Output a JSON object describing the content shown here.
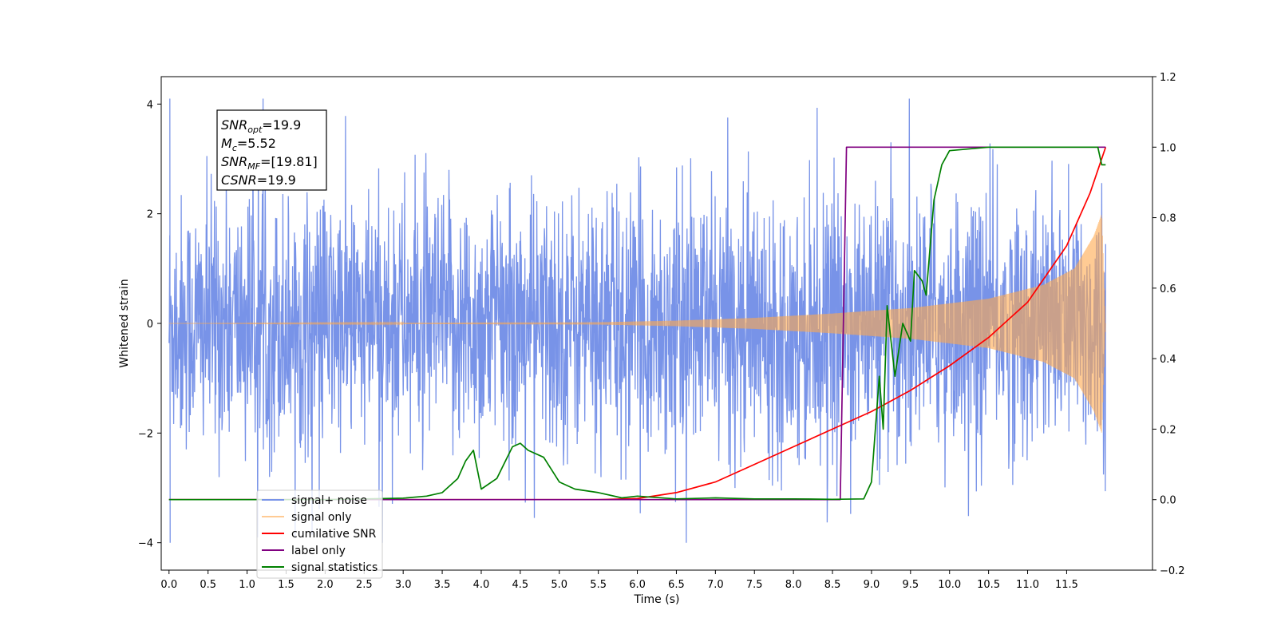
{
  "chart_data": {
    "type": "line",
    "xlabel": "Time (s)",
    "ylabel_left": "Whitened strain",
    "ylabel_right": "",
    "xlim": [
      -0.1,
      12.6
    ],
    "ylim_left": [
      -4.5,
      4.5
    ],
    "ylim_right": [
      -0.2,
      1.2
    ],
    "x_ticks": [
      0.0,
      0.5,
      1.0,
      1.5,
      2.0,
      2.5,
      3.0,
      3.5,
      4.0,
      4.5,
      5.0,
      5.5,
      6.0,
      6.5,
      7.0,
      7.5,
      8.0,
      8.5,
      9.0,
      9.5,
      10.0,
      10.5,
      11.0,
      11.5
    ],
    "x_tick_labels": [
      "0.0",
      "0.5",
      "1.0",
      "1.5",
      "2.0",
      "2.5",
      "3.0",
      "3.5",
      "4.0",
      "4.5",
      "5.0",
      "5.5",
      "6.0",
      "6.5",
      "7.0",
      "7.5",
      "8.0",
      "8.5",
      "9.0",
      "9.5",
      "10.0",
      "10.5",
      "11.0",
      "11.5"
    ],
    "y_left_ticks": [
      -4,
      -2,
      0,
      2,
      4
    ],
    "y_left_tick_labels": [
      "−4",
      "−2",
      "0",
      "2",
      "4"
    ],
    "y_right_ticks": [
      -0.2,
      0.0,
      0.2,
      0.4,
      0.6,
      0.8,
      1.0,
      1.2
    ],
    "y_right_tick_labels": [
      "−0.2",
      "0.0",
      "0.2",
      "0.4",
      "0.6",
      "0.8",
      "1.0",
      "1.2"
    ],
    "grid": false,
    "legend_placement": "lower-left",
    "series": [
      {
        "name": "signal+ noise",
        "axis": "left",
        "color": "#7893e8",
        "kind": "noise_band",
        "t_start": 0.0,
        "t_end": 12.0,
        "typical_amplitude": 2.1,
        "peak_max": 4.1,
        "peak_min": -4.0
      },
      {
        "name": "signal only",
        "axis": "left",
        "color": "#ffa94d",
        "kind": "chirp_envelope",
        "t_start": 0.0,
        "t_end": 12.0,
        "envelope": [
          [
            0.0,
            0.0
          ],
          [
            5.5,
            0.02
          ],
          [
            6.5,
            0.05
          ],
          [
            7.5,
            0.1
          ],
          [
            8.5,
            0.18
          ],
          [
            9.5,
            0.28
          ],
          [
            10.5,
            0.45
          ],
          [
            11.2,
            0.7
          ],
          [
            11.6,
            1.0
          ],
          [
            11.85,
            1.6
          ],
          [
            11.95,
            2.0
          ],
          [
            12.0,
            0.0
          ]
        ]
      },
      {
        "name": "cumilative SNR",
        "axis": "right",
        "color": "#ff0000",
        "kind": "line",
        "points": [
          [
            0.0,
            0.0
          ],
          [
            5.5,
            0.0
          ],
          [
            6.0,
            0.003
          ],
          [
            6.5,
            0.02
          ],
          [
            7.0,
            0.05
          ],
          [
            7.5,
            0.1
          ],
          [
            8.0,
            0.15
          ],
          [
            8.5,
            0.2
          ],
          [
            9.0,
            0.25
          ],
          [
            9.5,
            0.31
          ],
          [
            10.0,
            0.38
          ],
          [
            10.5,
            0.46
          ],
          [
            11.0,
            0.56
          ],
          [
            11.5,
            0.72
          ],
          [
            11.8,
            0.87
          ],
          [
            12.0,
            1.0
          ]
        ]
      },
      {
        "name": "label only",
        "axis": "right",
        "color": "#800080",
        "kind": "step",
        "points": [
          [
            0.0,
            0.0
          ],
          [
            8.6,
            0.0
          ],
          [
            8.68,
            1.0
          ],
          [
            12.0,
            1.0
          ]
        ]
      },
      {
        "name": "signal statistics",
        "axis": "right",
        "color": "#008000",
        "kind": "line",
        "points": [
          [
            0.0,
            0.0
          ],
          [
            2.0,
            0.0
          ],
          [
            2.5,
            0.002
          ],
          [
            3.0,
            0.004
          ],
          [
            3.3,
            0.01
          ],
          [
            3.5,
            0.02
          ],
          [
            3.7,
            0.06
          ],
          [
            3.8,
            0.11
          ],
          [
            3.9,
            0.14
          ],
          [
            4.0,
            0.03
          ],
          [
            4.2,
            0.06
          ],
          [
            4.4,
            0.15
          ],
          [
            4.5,
            0.16
          ],
          [
            4.6,
            0.14
          ],
          [
            4.8,
            0.12
          ],
          [
            5.0,
            0.05
          ],
          [
            5.2,
            0.03
          ],
          [
            5.5,
            0.02
          ],
          [
            5.8,
            0.005
          ],
          [
            6.0,
            0.01
          ],
          [
            6.5,
            0.002
          ],
          [
            7.0,
            0.005
          ],
          [
            7.5,
            0.002
          ],
          [
            8.0,
            0.002
          ],
          [
            8.5,
            0.001
          ],
          [
            8.9,
            0.002
          ],
          [
            9.0,
            0.05
          ],
          [
            9.1,
            0.35
          ],
          [
            9.15,
            0.2
          ],
          [
            9.2,
            0.55
          ],
          [
            9.3,
            0.35
          ],
          [
            9.4,
            0.5
          ],
          [
            9.5,
            0.45
          ],
          [
            9.55,
            0.65
          ],
          [
            9.65,
            0.62
          ],
          [
            9.7,
            0.58
          ],
          [
            9.8,
            0.85
          ],
          [
            9.9,
            0.95
          ],
          [
            10.0,
            0.99
          ],
          [
            10.5,
            1.0
          ],
          [
            11.5,
            1.0
          ],
          [
            11.9,
            1.0
          ],
          [
            11.95,
            0.95
          ],
          [
            12.0,
            0.95
          ]
        ]
      }
    ],
    "annotation": {
      "lines": [
        {
          "main": "SNR",
          "sub": "opt",
          "rest": "=19.9"
        },
        {
          "main": "M",
          "sub": "c",
          "rest": "=5.52"
        },
        {
          "main": "SNR",
          "sub": "MF",
          "rest": "=[19.81]"
        },
        {
          "main": "CSNR",
          "sub": "",
          "rest": "=19.9"
        }
      ]
    }
  }
}
